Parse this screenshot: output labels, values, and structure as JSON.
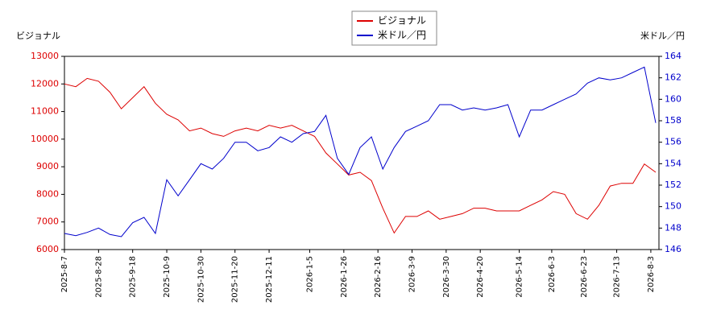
{
  "chart_data": {
    "type": "line",
    "y_label": "ビジョナル",
    "y2_label": "米ドル／円",
    "x": [
      "2025-08-07",
      "2025-08-14",
      "2025-08-21",
      "2025-08-28",
      "2025-09-04",
      "2025-09-11",
      "2025-09-18",
      "2025-09-25",
      "2025-10-02",
      "2025-10-09",
      "2025-10-16",
      "2025-10-23",
      "2025-10-30",
      "2025-11-06",
      "2025-11-13",
      "2025-11-20",
      "2025-11-27",
      "2025-12-04",
      "2025-12-11",
      "2025-12-18",
      "2025-12-25",
      "2026-01-01",
      "2026-01-08",
      "2026-01-15",
      "2026-01-22",
      "2026-01-29",
      "2026-02-05",
      "2026-02-12",
      "2026-02-19",
      "2026-02-26",
      "2026-03-05",
      "2026-03-12",
      "2026-03-19",
      "2026-03-26",
      "2026-04-02",
      "2026-04-09",
      "2026-04-16",
      "2026-04-23",
      "2026-04-30",
      "2026-05-07",
      "2026-05-14",
      "2026-05-21",
      "2026-05-28",
      "2026-06-04",
      "2026-06-11",
      "2026-06-18",
      "2026-06-25",
      "2026-07-02",
      "2026-07-09",
      "2026-07-16",
      "2026-07-23",
      "2026-07-30",
      "2026-08-06"
    ],
    "series": [
      {
        "name": "ビジョナル",
        "color": "#dd0000",
        "axis": "y",
        "values": [
          12000,
          11900,
          12200,
          12100,
          11700,
          11100,
          11500,
          11900,
          11300,
          10900,
          10700,
          10300,
          10400,
          10200,
          10100,
          10300,
          10400,
          10300,
          10500,
          10400,
          10500,
          10300,
          10100,
          9500,
          9100,
          8700,
          8800,
          8500,
          7500,
          6600,
          7200,
          7200,
          7400,
          7100,
          7200,
          7300,
          7500,
          7500,
          7400,
          7400,
          7400,
          7600,
          7800,
          8100,
          8000,
          7300,
          7100,
          7600,
          8300,
          8400,
          8400,
          9100,
          8800
        ]
      },
      {
        "name": "米ドル／円",
        "color": "#0000cc",
        "axis": "y2",
        "values": [
          147.5,
          147.3,
          147.6,
          148.0,
          147.4,
          147.2,
          148.5,
          149.0,
          147.5,
          152.5,
          151.0,
          152.5,
          154.0,
          153.5,
          154.5,
          156.0,
          156.0,
          155.2,
          155.5,
          156.5,
          156.0,
          156.8,
          157.0,
          158.5,
          154.5,
          153.0,
          155.5,
          156.5,
          153.5,
          155.5,
          157.0,
          157.5,
          158.0,
          159.5,
          159.5,
          159.0,
          159.2,
          159.0,
          159.2,
          159.5,
          156.5,
          159.0,
          159.0,
          159.5,
          160.0,
          160.5,
          161.5,
          162.0,
          161.8,
          162.0,
          162.5,
          163.0,
          157.8
        ]
      }
    ],
    "xlim": [
      "2025-08-07",
      "2026-08-08"
    ],
    "xticks": [
      {
        "value": "2025-08-07",
        "label": "2025-8-7"
      },
      {
        "value": "2025-08-28",
        "label": "2025-8-28"
      },
      {
        "value": "2025-09-18",
        "label": "2025-9-18"
      },
      {
        "value": "2025-10-09",
        "label": "2025-10-9"
      },
      {
        "value": "2025-10-30",
        "label": "2025-10-30"
      },
      {
        "value": "2025-11-20",
        "label": "2025-11-20"
      },
      {
        "value": "2025-12-11",
        "label": "2025-12-11"
      },
      {
        "value": "2026-01-05",
        "label": "2026-1-5"
      },
      {
        "value": "2026-01-26",
        "label": "2026-1-26"
      },
      {
        "value": "2026-02-16",
        "label": "2026-2-16"
      },
      {
        "value": "2026-03-09",
        "label": "2026-3-9"
      },
      {
        "value": "2026-03-30",
        "label": "2026-3-30"
      },
      {
        "value": "2026-04-20",
        "label": "2026-4-20"
      },
      {
        "value": "2026-05-14",
        "label": "2026-5-14"
      },
      {
        "value": "2026-06-03",
        "label": "2026-6-3"
      },
      {
        "value": "2026-06-23",
        "label": "2026-6-23"
      },
      {
        "value": "2026-07-13",
        "label": "2026-7-13"
      },
      {
        "value": "2026-08-03",
        "label": "2026-8-3"
      }
    ],
    "ylim": [
      6000,
      13000
    ],
    "yticks": [
      6000,
      7000,
      8000,
      9000,
      10000,
      11000,
      12000,
      13000
    ],
    "y2lim": [
      146,
      164
    ],
    "y2ticks": [
      146,
      148,
      150,
      152,
      154,
      156,
      158,
      160,
      162,
      164
    ],
    "grid": false,
    "legend": "top"
  }
}
